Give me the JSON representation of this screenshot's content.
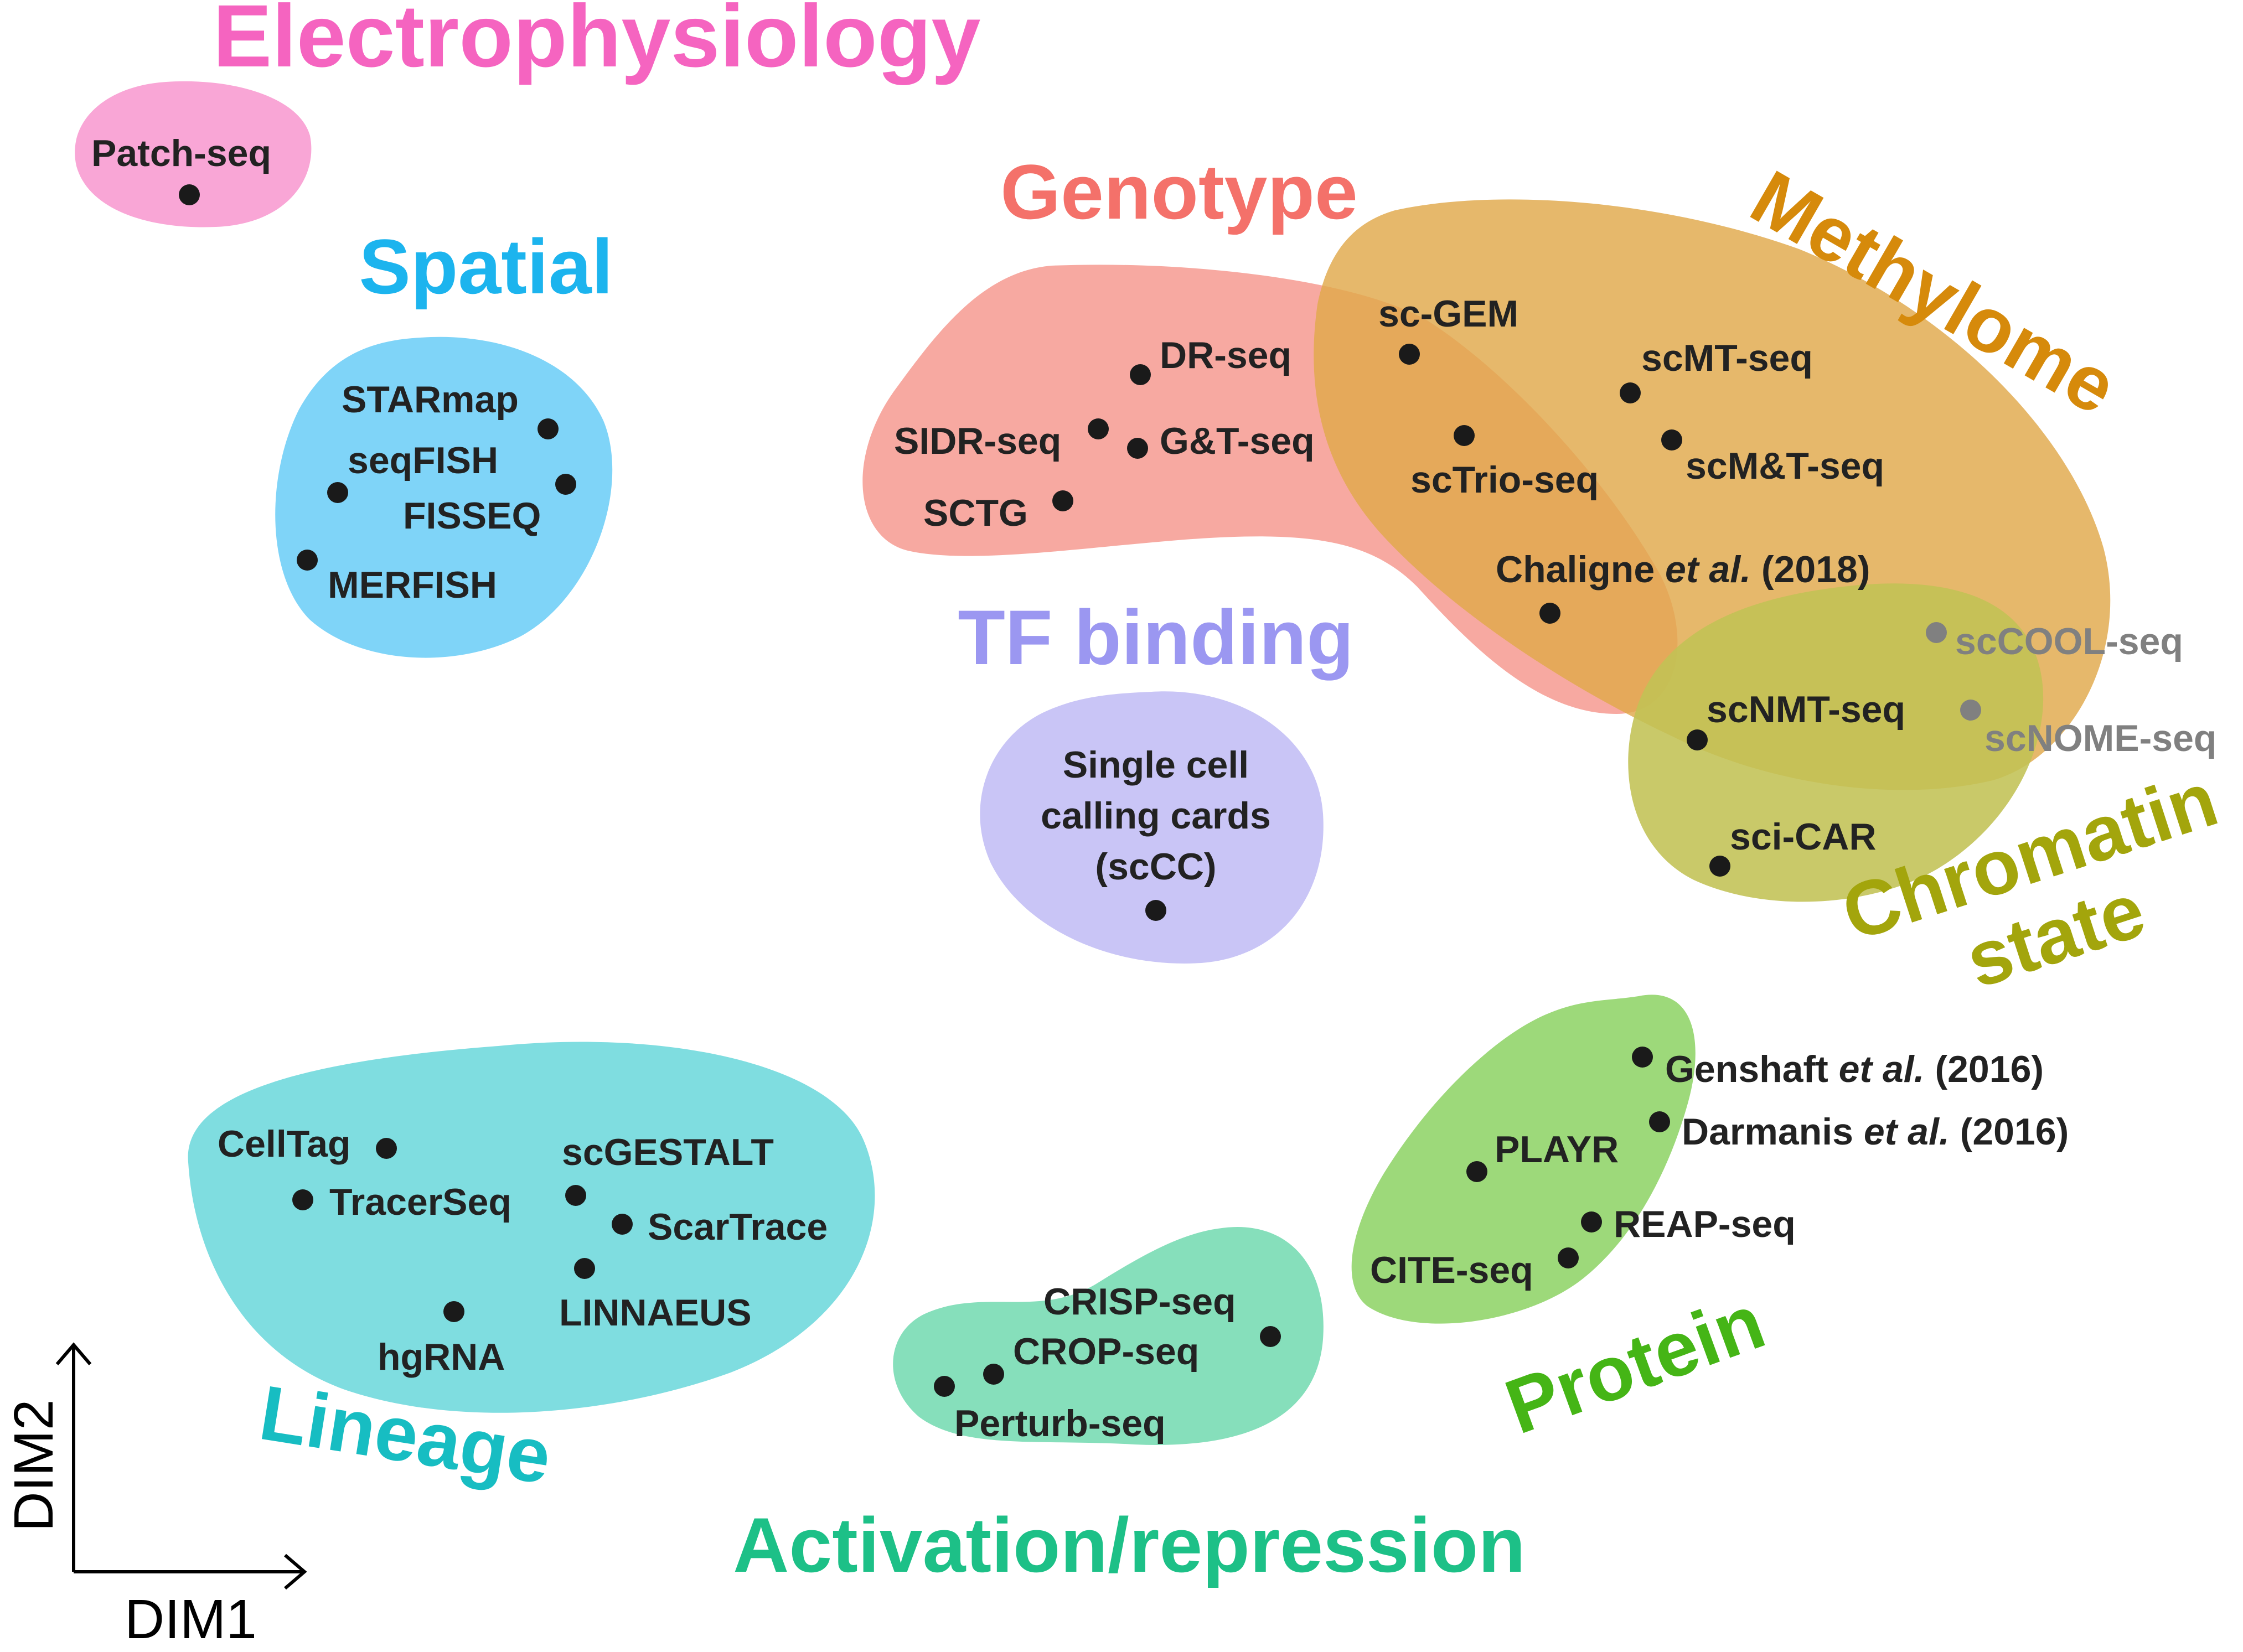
{
  "axes": {
    "x_label": "DIM1",
    "y_label": "DIM2"
  },
  "groups": [
    {
      "id": "electrophysiology",
      "title": "Electrophysiology",
      "color": "#F564C0",
      "fill": "#F9A6D6"
    },
    {
      "id": "spatial",
      "title": "Spatial",
      "color": "#1CB4EE",
      "fill": "#7FD4F8"
    },
    {
      "id": "genotype",
      "title": "Genotype",
      "color": "#F4716A",
      "fill": "#F7A49C"
    },
    {
      "id": "methylome",
      "title": "Methylome",
      "color": "#D68A0B",
      "fill": "#E0A84A"
    },
    {
      "id": "tf-binding",
      "title": "TF binding",
      "color": "#9B97F1",
      "fill": "#C9C5F6"
    },
    {
      "id": "chromatin",
      "title_lines": [
        "Chromatin",
        "state"
      ],
      "color": "#A3A50C",
      "fill": "#C2C254"
    },
    {
      "id": "lineage",
      "title": "Lineage",
      "color": "#17BDC2",
      "fill": "#7FDDE0"
    },
    {
      "id": "activation",
      "title": "Activation/repression",
      "color": "#1DC087",
      "fill": "#86DFBB"
    },
    {
      "id": "protein",
      "title": "Protein",
      "color": "#45B516",
      "fill": "#9DD97A"
    }
  ],
  "methods": {
    "patch_seq": "Patch-seq",
    "starmap": "STARmap",
    "seqfish": "seqFISH",
    "fisseq": "FISSEQ",
    "merfish": "MERFISH",
    "dr_seq": "DR-seq",
    "sidr_seq": "SIDR-seq",
    "gt_seq": "G&T-seq",
    "sctg": "SCTG",
    "sc_gem": "sc-GEM",
    "sctrio_seq": "scTrio-seq",
    "scmt_seq": "scMT-seq",
    "scmt_t_seq": "scM&T-seq",
    "chaligne": {
      "pre": "Chaligne ",
      "em": "et al.",
      "post": " (2018)"
    },
    "sccool_seq": "scCOOL-seq",
    "scnome_seq": "scNOME-seq",
    "scnmt_seq": "scNMT-seq",
    "sci_car": "sci-CAR",
    "sccc": [
      "Single cell",
      "calling cards",
      "(scCC)"
    ],
    "celltag": "CellTag",
    "tracerseq": "TracerSeq",
    "scgestalt": "scGESTALT",
    "scartrace": "ScarTrace",
    "linnaeus": "LINNAEUS",
    "hgrna": "hgRNA",
    "crisp_seq": "CRISP-seq",
    "crop_seq": "CROP-seq",
    "perturb_seq": "Perturb-seq",
    "genshaft": {
      "pre": "Genshaft ",
      "em": "et al.",
      "post": " (2016)"
    },
    "darmanis": {
      "pre": "Darmanis ",
      "em": "et al.",
      "post": " (2016)"
    },
    "playr": "PLAYR",
    "reap_seq": "REAP-seq",
    "cite_seq": "CITE-seq"
  }
}
